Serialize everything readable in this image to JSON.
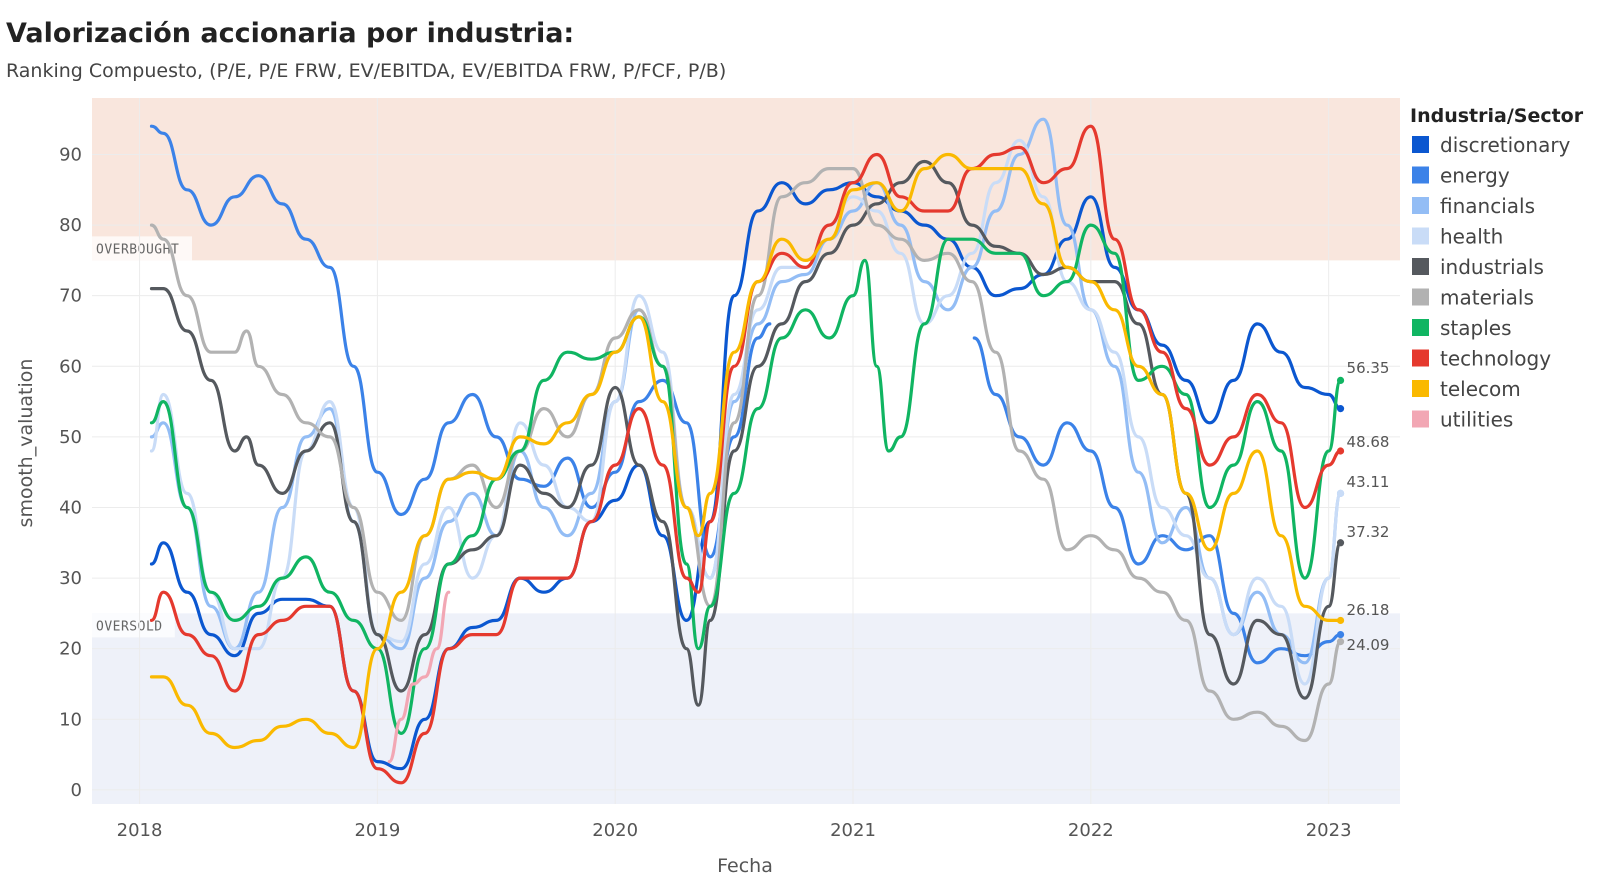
{
  "chart_data": {
    "type": "line",
    "title": "Valorización accionaria por industria:",
    "subtitle": "Ranking Compuesto, (P/E, P/E FRW, EV/EBITDA, EV/EBITDA FRW, P/FCF, P/B)",
    "xlabel": "Fecha",
    "ylabel": "smooth_valuation",
    "xlim": [
      2017.8,
      2023.3
    ],
    "ylim": [
      -2,
      98
    ],
    "x_ticks": [
      2018,
      2019,
      2020,
      2021,
      2022,
      2023
    ],
    "y_ticks": [
      0,
      10,
      20,
      30,
      40,
      50,
      60,
      70,
      80,
      90
    ],
    "grid": true,
    "legend_title": "Industria/Sector",
    "legend_position": "right",
    "zones": [
      {
        "label": "OVERBOUGHT",
        "from": 75,
        "to": 98,
        "color": "#f9e6dd"
      },
      {
        "label": "OVERSOLD",
        "from": -2,
        "to": 25,
        "color": "#eef1f9"
      }
    ],
    "end_labels": [
      {
        "text": "56.35",
        "y": 58.5
      },
      {
        "text": "48.68",
        "y": 48.2
      },
      {
        "text": "43.11",
        "y": 42.5
      },
      {
        "text": "37.32",
        "y": 35.5
      },
      {
        "text": "26.18",
        "y": 24.5
      },
      {
        "text": "24.09",
        "y": 22.3
      }
    ],
    "series": [
      {
        "name": "discretionary",
        "color": "#0b57d0",
        "x": [
          2018.05,
          2018.1,
          2018.2,
          2018.3,
          2018.4,
          2018.5,
          2018.6,
          2018.7,
          2018.8,
          2018.9,
          2019.0,
          2019.1,
          2019.2,
          2019.3,
          2019.4,
          2019.5,
          2019.6,
          2019.7,
          2019.8,
          2019.9,
          2020.0,
          2020.1,
          2020.2,
          2020.3,
          2020.4,
          2020.5,
          2020.6,
          2020.7,
          2020.8,
          2020.9,
          2021.0,
          2021.1,
          2021.2,
          2021.3,
          2021.4,
          2021.5,
          2021.6,
          2021.7,
          2021.8,
          2021.9,
          2022.0,
          2022.1,
          2022.2,
          2022.3,
          2022.4,
          2022.5,
          2022.6,
          2022.7,
          2022.8,
          2022.9,
          2023.0,
          2023.05
        ],
        "y": [
          32,
          35,
          28,
          22,
          19,
          25,
          27,
          27,
          26,
          14,
          4,
          3,
          10,
          20,
          23,
          24,
          30,
          28,
          30,
          38,
          41,
          46,
          36,
          24,
          38,
          70,
          82,
          86,
          83,
          85,
          86,
          84,
          82,
          80,
          78,
          74,
          70,
          71,
          73,
          78,
          84,
          74,
          68,
          63,
          58,
          52,
          58,
          66,
          62,
          57,
          56,
          54
        ]
      },
      {
        "name": "energy",
        "color": "#3b82e8",
        "x": [
          2018.05,
          2018.1,
          2018.2,
          2018.3,
          2018.4,
          2018.5,
          2018.6,
          2018.7,
          2018.8,
          2018.9,
          2019.0,
          2019.1,
          2019.2,
          2019.3,
          2019.4,
          2019.5,
          2019.6,
          2019.7,
          2019.8,
          2019.9,
          2020.0,
          2020.1,
          2020.2,
          2020.3,
          2020.4,
          2020.5,
          2020.6,
          2020.65,
          2021.51,
          2021.6,
          2021.7,
          2021.8,
          2021.9,
          2022.0,
          2022.1,
          2022.2,
          2022.3,
          2022.4,
          2022.5,
          2022.6,
          2022.7,
          2022.8,
          2022.9,
          2023.0,
          2023.05
        ],
        "y": [
          94,
          93,
          85,
          80,
          84,
          87,
          83,
          78,
          74,
          60,
          45,
          39,
          44,
          52,
          56,
          50,
          44,
          43,
          47,
          40,
          45,
          55,
          58,
          52,
          33,
          50,
          64,
          66,
          64,
          56,
          50,
          46,
          52,
          48,
          40,
          32,
          36,
          34,
          36,
          25,
          18,
          20,
          19,
          21,
          22
        ]
      },
      {
        "name": "financials",
        "color": "#93bdf5",
        "x": [
          2018.05,
          2018.1,
          2018.2,
          2018.3,
          2018.4,
          2018.5,
          2018.6,
          2018.7,
          2018.8,
          2018.9,
          2019.0,
          2019.1,
          2019.2,
          2019.3,
          2019.4,
          2019.5,
          2019.6,
          2019.7,
          2019.8,
          2019.9,
          2020.0,
          2020.1,
          2020.2,
          2020.3,
          2020.4,
          2020.5,
          2020.6,
          2020.7,
          2020.8,
          2020.9,
          2021.0,
          2021.1,
          2021.2,
          2021.3,
          2021.4,
          2021.5,
          2021.6,
          2021.7,
          2021.8,
          2021.9,
          2022.0,
          2022.1,
          2022.2,
          2022.3,
          2022.4,
          2022.5,
          2022.6,
          2022.7,
          2022.8,
          2022.9,
          2023.0,
          2023.05
        ],
        "y": [
          50,
          52,
          40,
          26,
          20,
          28,
          40,
          50,
          54,
          38,
          22,
          20,
          30,
          38,
          42,
          36,
          48,
          40,
          36,
          42,
          55,
          68,
          60,
          40,
          30,
          55,
          66,
          72,
          73,
          78,
          82,
          86,
          80,
          72,
          68,
          74,
          82,
          90,
          95,
          80,
          68,
          60,
          45,
          35,
          40,
          30,
          22,
          28,
          22,
          18,
          30,
          42
        ]
      },
      {
        "name": "health",
        "color": "#c9dcf7",
        "x": [
          2018.05,
          2018.1,
          2018.2,
          2018.3,
          2018.4,
          2018.5,
          2018.6,
          2018.7,
          2018.8,
          2018.9,
          2019.0,
          2019.1,
          2019.2,
          2019.3,
          2019.4,
          2019.5,
          2019.6,
          2019.7,
          2019.8,
          2019.9,
          2020.0,
          2020.1,
          2020.2,
          2020.3,
          2020.4,
          2020.5,
          2020.6,
          2020.7,
          2020.8,
          2020.9,
          2021.0,
          2021.1,
          2021.2,
          2021.3,
          2021.4,
          2021.5,
          2021.6,
          2021.7,
          2021.8,
          2021.9,
          2022.0,
          2022.1,
          2022.2,
          2022.3,
          2022.4,
          2022.5,
          2022.6,
          2022.7,
          2022.8,
          2022.9,
          2023.0,
          2023.05
        ],
        "y": [
          48,
          56,
          42,
          28,
          20,
          20,
          30,
          48,
          55,
          40,
          22,
          21,
          32,
          40,
          30,
          36,
          52,
          46,
          40,
          38,
          55,
          70,
          62,
          40,
          30,
          56,
          68,
          74,
          74,
          80,
          84,
          82,
          76,
          66,
          70,
          76,
          86,
          92,
          84,
          72,
          68,
          62,
          50,
          40,
          36,
          30,
          22,
          30,
          26,
          15,
          30,
          42
        ]
      },
      {
        "name": "industrials",
        "color": "#55595e",
        "x": [
          2018.05,
          2018.1,
          2018.2,
          2018.3,
          2018.4,
          2018.45,
          2018.5,
          2018.6,
          2018.7,
          2018.8,
          2018.9,
          2019.0,
          2019.1,
          2019.2,
          2019.3,
          2019.4,
          2019.5,
          2019.6,
          2019.7,
          2019.8,
          2019.9,
          2020.0,
          2020.1,
          2020.2,
          2020.3,
          2020.35,
          2020.4,
          2020.5,
          2020.6,
          2020.7,
          2020.8,
          2020.9,
          2021.0,
          2021.1,
          2021.2,
          2021.3,
          2021.4,
          2021.5,
          2021.6,
          2021.7,
          2021.8,
          2021.9,
          2022.0,
          2022.1,
          2022.2,
          2022.3,
          2022.4,
          2022.5,
          2022.6,
          2022.7,
          2022.8,
          2022.9,
          2023.0,
          2023.05
        ],
        "y": [
          71,
          71,
          65,
          58,
          48,
          50,
          46,
          42,
          48,
          52,
          38,
          22,
          14,
          22,
          32,
          34,
          36,
          46,
          42,
          40,
          46,
          57,
          46,
          38,
          20,
          12,
          24,
          48,
          60,
          66,
          72,
          76,
          80,
          83,
          86,
          89,
          86,
          80,
          77,
          76,
          73,
          74,
          72,
          72,
          66,
          56,
          42,
          22,
          15,
          24,
          22,
          13,
          26,
          35
        ]
      },
      {
        "name": "materials",
        "color": "#b2b2b2",
        "x": [
          2018.05,
          2018.1,
          2018.2,
          2018.3,
          2018.4,
          2018.45,
          2018.5,
          2018.6,
          2018.7,
          2018.8,
          2018.9,
          2019.0,
          2019.1,
          2019.2,
          2019.3,
          2019.4,
          2019.5,
          2019.6,
          2019.7,
          2019.8,
          2019.9,
          2020.0,
          2020.1,
          2020.2,
          2020.3,
          2020.4,
          2020.5,
          2020.6,
          2020.7,
          2020.8,
          2020.9,
          2021.0,
          2021.1,
          2021.2,
          2021.3,
          2021.4,
          2021.5,
          2021.6,
          2021.7,
          2021.8,
          2021.9,
          2022.0,
          2022.1,
          2022.2,
          2022.3,
          2022.4,
          2022.5,
          2022.6,
          2022.7,
          2022.8,
          2022.9,
          2023.0,
          2023.05
        ],
        "y": [
          80,
          78,
          70,
          62,
          62,
          65,
          60,
          56,
          52,
          50,
          40,
          28,
          24,
          36,
          44,
          46,
          40,
          48,
          54,
          50,
          56,
          64,
          68,
          60,
          40,
          26,
          52,
          70,
          84,
          86,
          88,
          88,
          80,
          78,
          75,
          76,
          72,
          62,
          48,
          44,
          34,
          36,
          34,
          30,
          28,
          24,
          14,
          10,
          11,
          9,
          7,
          15,
          21
        ]
      },
      {
        "name": "staples",
        "color": "#10b562",
        "x": [
          2018.05,
          2018.1,
          2018.2,
          2018.3,
          2018.4,
          2018.5,
          2018.6,
          2018.7,
          2018.8,
          2018.9,
          2019.0,
          2019.1,
          2019.2,
          2019.3,
          2019.4,
          2019.5,
          2019.6,
          2019.7,
          2019.8,
          2019.9,
          2020.0,
          2020.1,
          2020.2,
          2020.3,
          2020.35,
          2020.4,
          2020.5,
          2020.6,
          2020.7,
          2020.8,
          2020.9,
          2021.0,
          2021.05,
          2021.1,
          2021.15,
          2021.2,
          2021.3,
          2021.4,
          2021.5,
          2021.6,
          2021.7,
          2021.8,
          2021.9,
          2022.0,
          2022.1,
          2022.2,
          2022.3,
          2022.4,
          2022.5,
          2022.6,
          2022.7,
          2022.8,
          2022.9,
          2023.0,
          2023.05
        ],
        "y": [
          52,
          55,
          40,
          28,
          24,
          26,
          30,
          33,
          28,
          24,
          20,
          8,
          20,
          32,
          36,
          44,
          48,
          58,
          62,
          61,
          62,
          67,
          60,
          32,
          20,
          26,
          42,
          54,
          64,
          68,
          64,
          70,
          75,
          60,
          48,
          50,
          66,
          78,
          78,
          76,
          76,
          70,
          72,
          80,
          76,
          58,
          60,
          56,
          40,
          46,
          55,
          48,
          30,
          48,
          58
        ]
      },
      {
        "name": "technology",
        "color": "#e5392e",
        "x": [
          2018.05,
          2018.1,
          2018.2,
          2018.3,
          2018.4,
          2018.5,
          2018.6,
          2018.7,
          2018.8,
          2018.9,
          2019.0,
          2019.1,
          2019.2,
          2019.3,
          2019.4,
          2019.5,
          2019.6,
          2019.7,
          2019.8,
          2019.9,
          2020.0,
          2020.1,
          2020.2,
          2020.3,
          2020.35,
          2020.4,
          2020.5,
          2020.6,
          2020.7,
          2020.8,
          2020.9,
          2021.0,
          2021.1,
          2021.2,
          2021.3,
          2021.4,
          2021.5,
          2021.6,
          2021.7,
          2021.8,
          2021.9,
          2022.0,
          2022.1,
          2022.2,
          2022.3,
          2022.4,
          2022.5,
          2022.6,
          2022.7,
          2022.8,
          2022.9,
          2023.0,
          2023.05
        ],
        "y": [
          24,
          28,
          22,
          19,
          14,
          22,
          24,
          26,
          26,
          14,
          3,
          1,
          8,
          20,
          22,
          22,
          30,
          30,
          30,
          38,
          46,
          54,
          46,
          30,
          28,
          38,
          60,
          72,
          76,
          74,
          80,
          86,
          90,
          84,
          82,
          82,
          88,
          90,
          91,
          86,
          88,
          94,
          78,
          68,
          62,
          54,
          46,
          50,
          56,
          52,
          40,
          46,
          48
        ]
      },
      {
        "name": "telecom",
        "color": "#fab900",
        "x": [
          2018.05,
          2018.1,
          2018.2,
          2018.3,
          2018.4,
          2018.5,
          2018.6,
          2018.7,
          2018.8,
          2018.9,
          2019.0,
          2019.1,
          2019.2,
          2019.3,
          2019.4,
          2019.5,
          2019.6,
          2019.7,
          2019.8,
          2019.9,
          2020.0,
          2020.1,
          2020.2,
          2020.3,
          2020.35,
          2020.4,
          2020.5,
          2020.6,
          2020.7,
          2020.8,
          2020.9,
          2021.0,
          2021.1,
          2021.2,
          2021.3,
          2021.4,
          2021.5,
          2021.6,
          2021.7,
          2021.8,
          2021.9,
          2022.0,
          2022.1,
          2022.2,
          2022.3,
          2022.4,
          2022.5,
          2022.6,
          2022.7,
          2022.8,
          2022.9,
          2023.0,
          2023.05
        ],
        "y": [
          16,
          16,
          12,
          8,
          6,
          7,
          9,
          10,
          8,
          6,
          20,
          28,
          36,
          44,
          45,
          44,
          50,
          49,
          52,
          56,
          62,
          67,
          55,
          40,
          36,
          42,
          62,
          72,
          78,
          75,
          78,
          85,
          86,
          82,
          88,
          90,
          88,
          88,
          88,
          83,
          74,
          72,
          68,
          60,
          56,
          42,
          34,
          42,
          48,
          36,
          26,
          24,
          24
        ]
      },
      {
        "name": "utilities",
        "color": "#f2a7b4",
        "x": [
          2019.05,
          2019.1,
          2019.15,
          2019.2,
          2019.25,
          2019.3
        ],
        "y": [
          4,
          10,
          15,
          16,
          20,
          28
        ]
      }
    ]
  }
}
